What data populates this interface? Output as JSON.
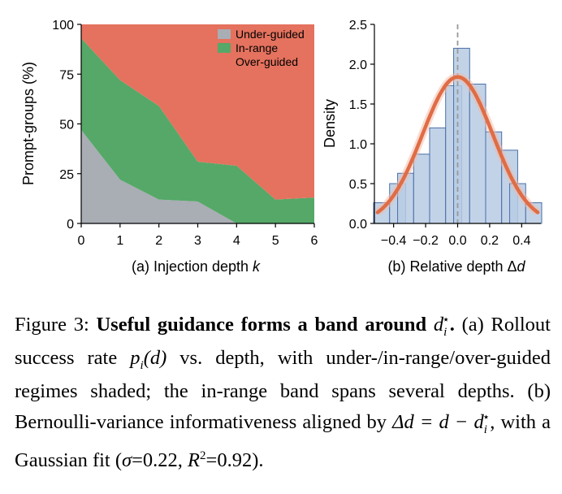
{
  "figure": {
    "panel_a": {
      "type": "area",
      "x": [
        0,
        1,
        2,
        3,
        4,
        5,
        6
      ],
      "xlim": [
        0,
        6
      ],
      "ylim": [
        0,
        100
      ],
      "xticks": [
        "0",
        "1",
        "2",
        "3",
        "4",
        "5",
        "6"
      ],
      "yticks": [
        "0",
        "25",
        "50",
        "75",
        "100"
      ],
      "ylabel": "Prompt-groups (%)",
      "xlabel": "(a) Injection depth ",
      "xlabel_var": "k",
      "series": [
        {
          "name": "Under-guided",
          "color": "#a9adb4",
          "values": [
            47,
            22,
            12,
            11,
            0,
            0,
            0
          ]
        },
        {
          "name": "In-range",
          "color": "#55a868",
          "values": [
            46,
            50,
            47,
            20,
            29,
            12,
            13
          ]
        },
        {
          "name": "Over-guided",
          "color": "#e4725e",
          "values": [
            7,
            28,
            41,
            69,
            71,
            88,
            87
          ]
        }
      ],
      "legend_position": "top-right"
    },
    "panel_b": {
      "type": "bar",
      "bin_edges": [
        -0.5,
        -0.4,
        -0.3,
        -0.2,
        -0.1,
        0.0,
        0.1,
        0.2,
        0.3,
        0.4,
        0.5
      ],
      "bin_width": 0.1,
      "bins": [
        {
          "center": -0.475,
          "value": 0.26
        },
        {
          "center": -0.375,
          "value": 0.5
        },
        {
          "center": -0.325,
          "value": 0.63
        },
        {
          "center": -0.225,
          "value": 0.87
        },
        {
          "center": -0.125,
          "value": 1.2
        },
        {
          "center": -0.025,
          "value": 1.73
        },
        {
          "center": 0.025,
          "value": 2.2
        },
        {
          "center": 0.125,
          "value": 1.75
        },
        {
          "center": 0.225,
          "value": 1.15
        },
        {
          "center": 0.325,
          "value": 0.92
        },
        {
          "center": 0.375,
          "value": 0.5
        },
        {
          "center": 0.475,
          "value": 0.26
        }
      ],
      "fit": {
        "mu": 0.0,
        "sigma": 0.22,
        "peak": 1.84,
        "color": "#e06c45"
      },
      "bar_color": "#b7cbe4",
      "bar_edge": "#4a6fa5",
      "vline_x": 0,
      "xlim": [
        -0.52,
        0.52
      ],
      "ylim": [
        0,
        2.5
      ],
      "xticks": [
        "−0.4",
        "−0.2",
        "0.0",
        "0.2",
        "0.4"
      ],
      "xtick_values": [
        -0.4,
        -0.2,
        0.0,
        0.2,
        0.4
      ],
      "yticks": [
        "0.0",
        "0.5",
        "1.0",
        "1.5",
        "2.0",
        "2.5"
      ],
      "ylabel": "Density",
      "xlabel": "(b) Relative depth Δ",
      "xlabel_var": "d"
    }
  },
  "caption": {
    "label": "Figure 3: ",
    "bold_title": "Useful guidance forms a band around ",
    "title_var": "d",
    "title_sub": "i",
    "title_sup": "⋆",
    "title_end": ".",
    "line1a": "(a) Rollout success rate ",
    "line1_math": "p",
    "line1_sub": "i",
    "line1_arg": "(d)",
    "line1b": " vs. depth, with under-/in-range/over-guided regimes shaded; the in-range band spans several depths.  (b) Bernoulli-variance informativeness aligned by ",
    "delta_eq": "Δd = d − d",
    "delta_sub": "i",
    "delta_sup": "⋆",
    "line2b": ", with a Gaussian fit (",
    "sigma_txt": "σ",
    "sigma_val": "=0.22, ",
    "r_txt": "R",
    "r_sup": "2",
    "r_val": "=0.92)."
  }
}
